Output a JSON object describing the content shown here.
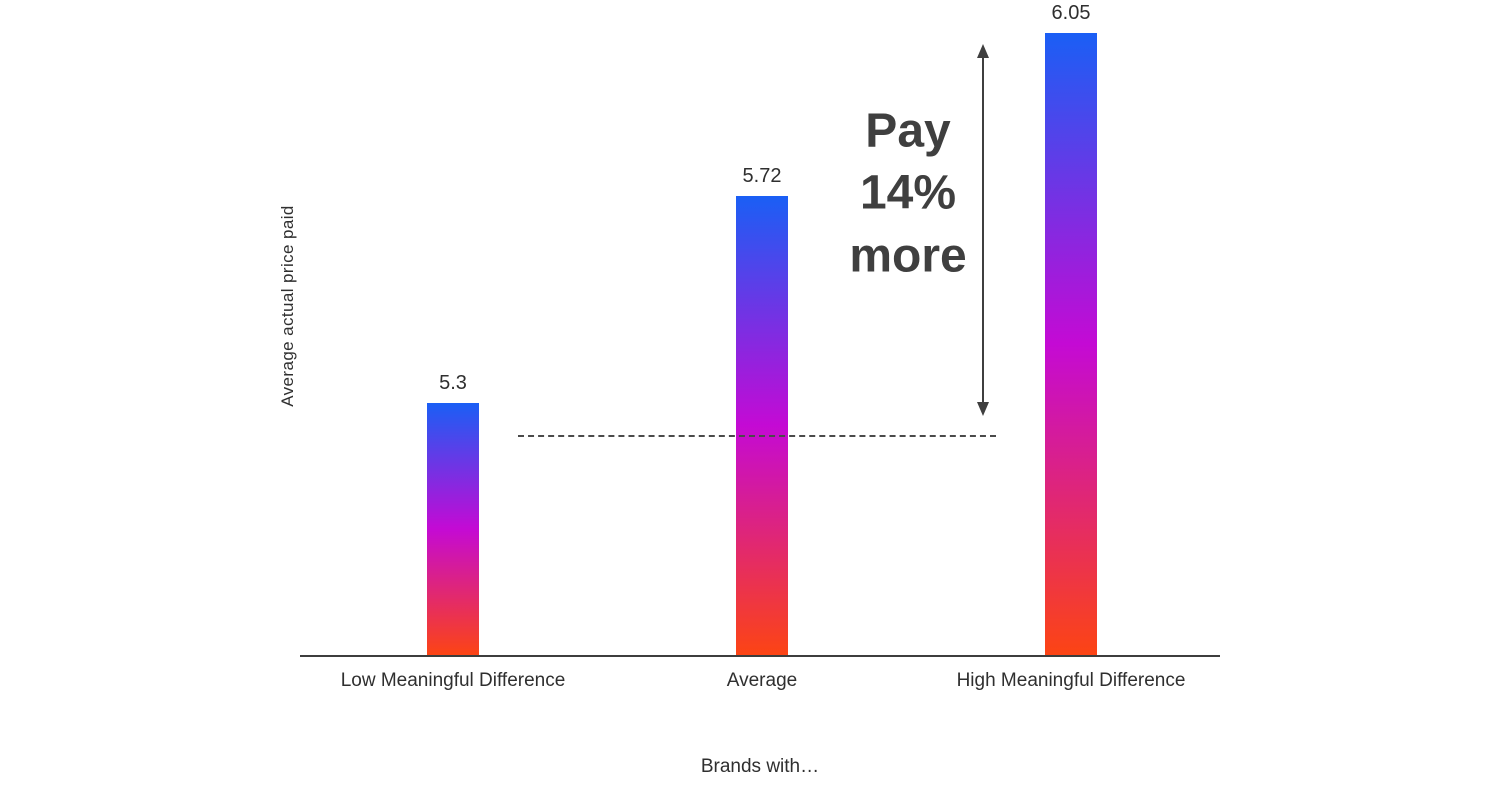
{
  "chart_data": {
    "type": "bar",
    "title": "",
    "categories": [
      "Low Meaningful Difference",
      "Average",
      "High Meaningful Difference"
    ],
    "values": [
      5.3,
      5.72,
      6.05
    ],
    "xlabel": "Brands with…",
    "ylabel": "Average actual price paid",
    "ylim": [
      4.79,
      6.05
    ],
    "grid": false,
    "legend": false,
    "bar_gradient_top_to_bottom": [
      "#1a5ff5",
      "#c40ad4",
      "#fc4414"
    ],
    "annotation": "Pay 14% more",
    "reference_line_style": "dashed"
  },
  "colors": {
    "axis": "#3d3d3d",
    "text": "#2f2f2f",
    "annotation": "#3f3f3f",
    "dash": "#4a4a4a"
  }
}
